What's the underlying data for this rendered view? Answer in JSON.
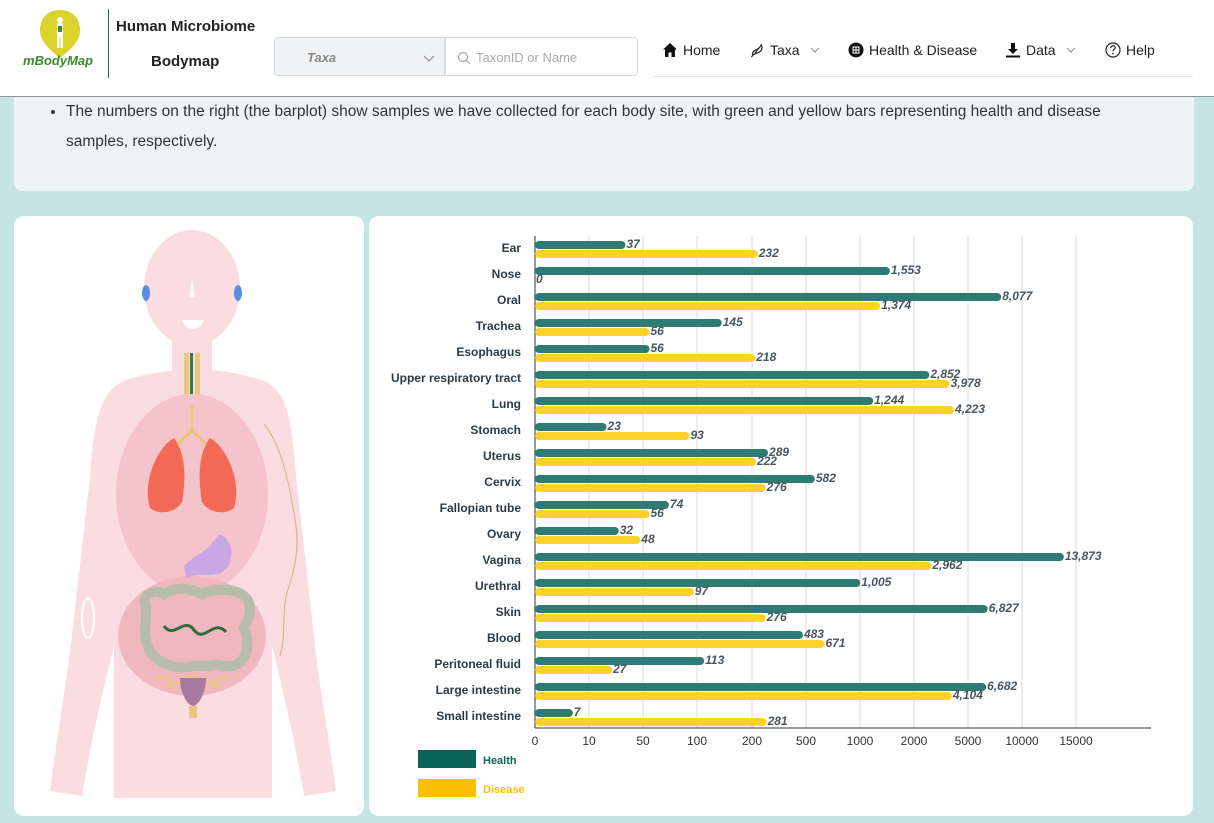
{
  "header": {
    "logo_text_m": "m",
    "logo_text_rest": "BodyMap",
    "brand_line1": "Human Microbiome",
    "brand_line2": "Bodymap",
    "select_value": "Taxa",
    "search_placeholder": "TaxonID or Name"
  },
  "nav": {
    "items": [
      {
        "label": "Home",
        "icon": "home-icon"
      },
      {
        "label": "Taxa",
        "icon": "taxa-icon"
      },
      {
        "label": "Health & Disease",
        "icon": "health-icon"
      },
      {
        "label": "Data",
        "icon": "download-icon"
      },
      {
        "label": "Help",
        "icon": "help-icon"
      }
    ]
  },
  "info": {
    "bullet": "The numbers on the right (the barplot) show samples we have collected for each body site, with green and yellow bars representing health and disease samples, respectively."
  },
  "colors": {
    "health": "#2e7b73",
    "disease": "#fcd12a",
    "health_legend": "#0b6357",
    "disease_legend": "#fbc000"
  },
  "chart_data": {
    "type": "bar",
    "orientation": "horizontal",
    "axis_scale": "piecewise",
    "categories": [
      "Ear",
      "Nose",
      "Oral",
      "Trachea",
      "Esophagus",
      "Upper respiratory tract",
      "Lung",
      "Stomach",
      "Uterus",
      "Cervix",
      "Fallopian tube",
      "Ovary",
      "Vagina",
      "Urethral",
      "Skin",
      "Blood",
      "Peritoneal fluid",
      "Large intestine",
      "Small intestine"
    ],
    "series": [
      {
        "name": "Health",
        "values": [
          37,
          1553,
          8077,
          145,
          56,
          2852,
          1244,
          23,
          289,
          582,
          74,
          32,
          13873,
          1005,
          6827,
          483,
          113,
          6682,
          7
        ]
      },
      {
        "name": "Disease",
        "values": [
          232,
          0,
          1374,
          56,
          218,
          3978,
          4223,
          93,
          222,
          276,
          56,
          48,
          2962,
          97,
          276,
          671,
          27,
          4104,
          281
        ]
      }
    ],
    "value_labels": {
      "Health": [
        "37",
        "1,553",
        "8,077",
        "145",
        "56",
        "2,852",
        "1,244",
        "23",
        "289",
        "582",
        "74",
        "32",
        "13,873",
        "1,005",
        "6,827",
        "483",
        "113",
        "6,682",
        "7"
      ],
      "Disease": [
        "232",
        "0",
        "1,374",
        "56",
        "218",
        "3,978",
        "4,223",
        "93",
        "222",
        "276",
        "56",
        "48",
        "2,962",
        "97",
        "276",
        "671",
        "27",
        "4,104",
        "281"
      ]
    },
    "xticks": [
      0,
      10,
      50,
      100,
      200,
      500,
      1000,
      2000,
      5000,
      10000,
      15000
    ],
    "xtick_labels": [
      "0",
      "10",
      "50",
      "100",
      "200",
      "500",
      "1000",
      "2000",
      "5000",
      "10000",
      "15000"
    ],
    "legend": [
      {
        "name": "Health"
      },
      {
        "name": "Disease"
      }
    ],
    "legend_position": "bottom-left",
    "grid": true
  }
}
